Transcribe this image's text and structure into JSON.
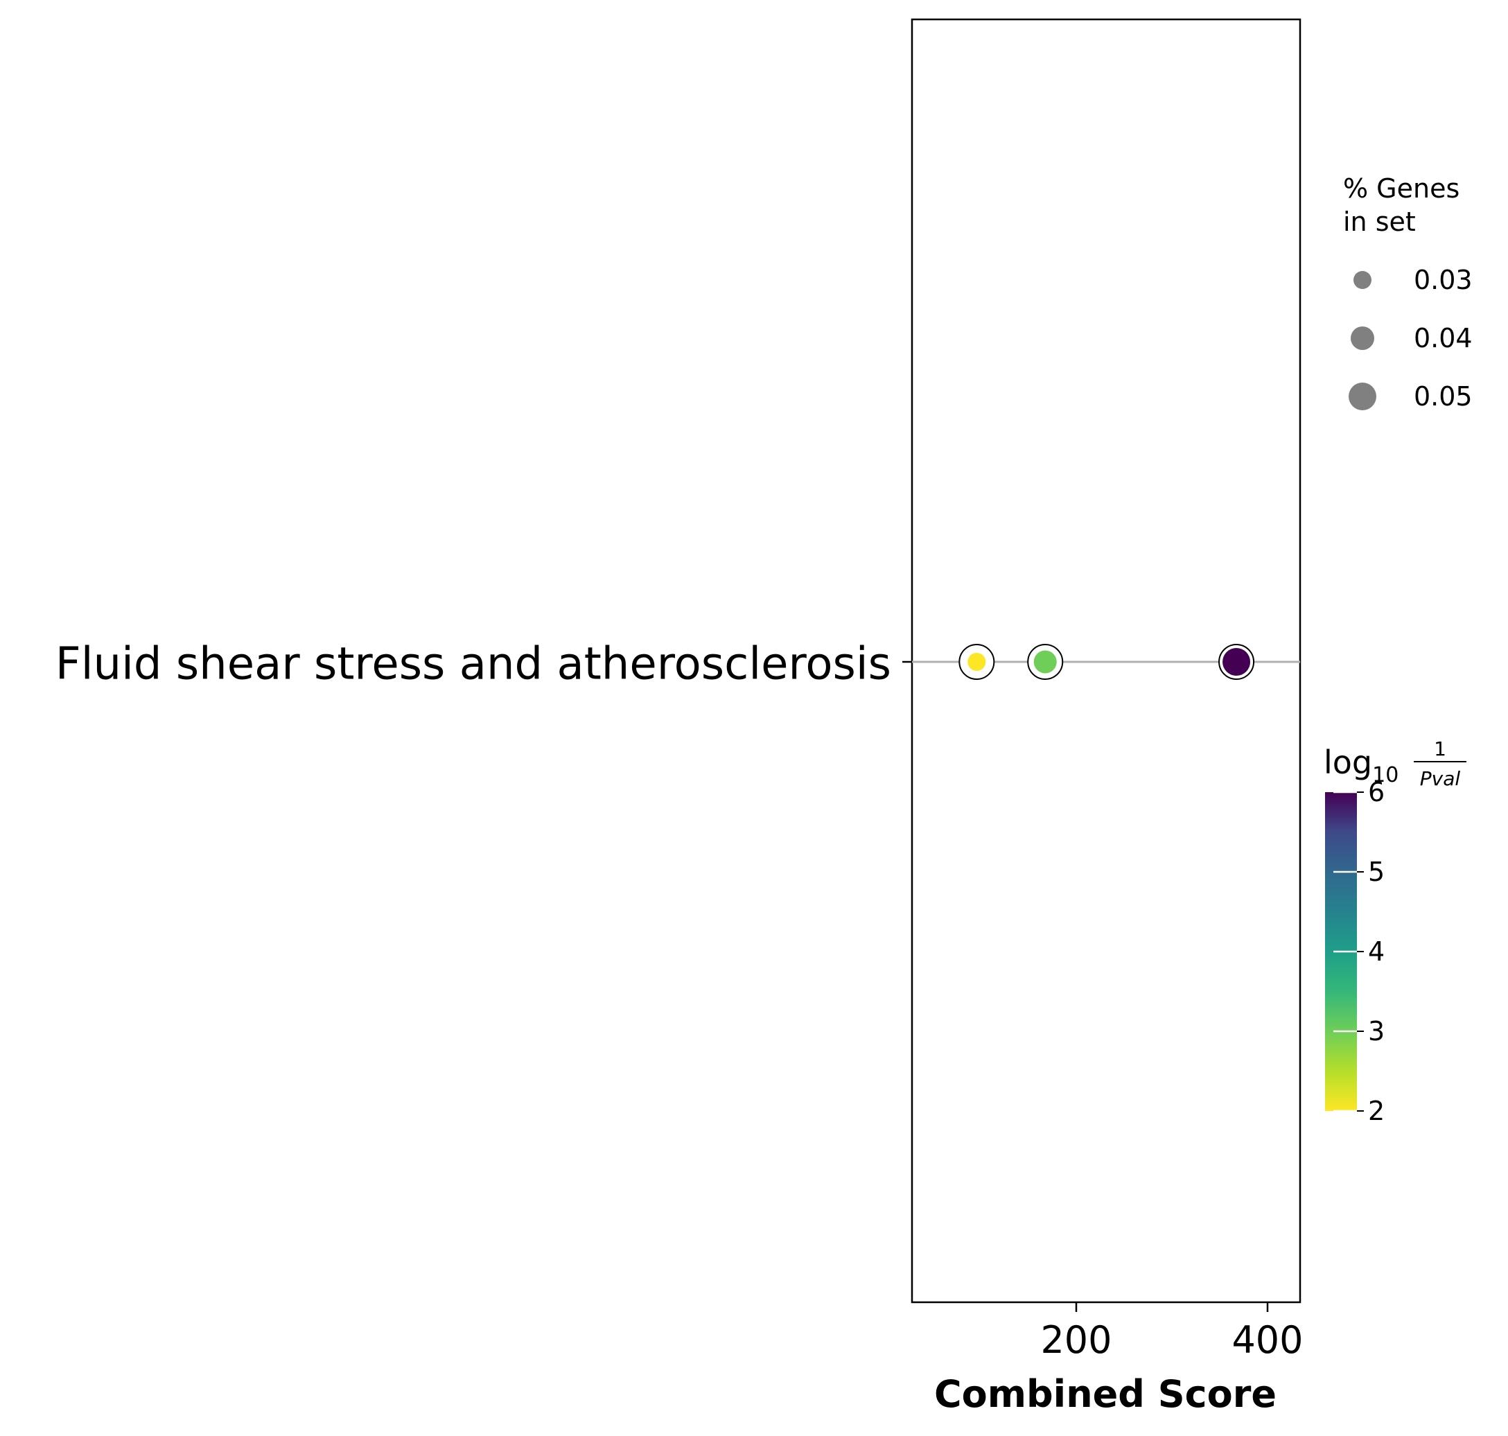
{
  "chart_data": {
    "type": "scatter",
    "title": "",
    "xlabel": "Combined Score",
    "ylabel": "",
    "xlim": [
      30,
      432
    ],
    "xticks": [
      "200",
      "400"
    ],
    "categories": [
      "Fluid shear stress and atherosclerosis"
    ],
    "grid": "horizontal line through category",
    "points": [
      {
        "category": "Fluid shear stress and atherosclerosis",
        "x": 97,
        "pct_genes": 0.03,
        "log10_inv_pval": 2.0
      },
      {
        "category": "Fluid shear stress and atherosclerosis",
        "x": 168,
        "pct_genes": 0.04,
        "log10_inv_pval": 3.0
      },
      {
        "category": "Fluid shear stress and atherosclerosis",
        "x": 366,
        "pct_genes": 0.05,
        "log10_inv_pval": 6.0
      }
    ],
    "size_legend": {
      "title_line1": "% Genes",
      "title_line2": "in set",
      "entries": [
        "0.03",
        "0.04",
        "0.05"
      ],
      "values": [
        0.03,
        0.04,
        0.05
      ],
      "color": "#808080"
    },
    "colorbar": {
      "title_log": "log",
      "title_sub": "10",
      "title_num": "1",
      "title_den": "Pval",
      "range": [
        2,
        6
      ],
      "ticks": [
        "2",
        "3",
        "4",
        "5",
        "6"
      ],
      "colormap": "viridis_r",
      "colors": [
        "#fde725",
        "#5ec962",
        "#21918c",
        "#3b528b",
        "#440154"
      ]
    }
  }
}
